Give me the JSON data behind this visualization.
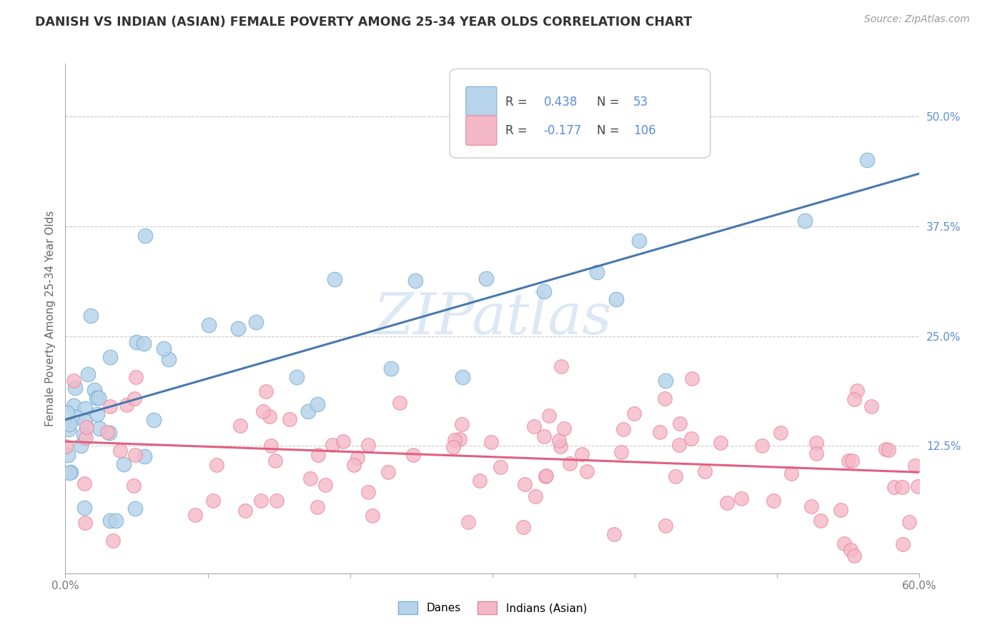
{
  "title": "DANISH VS INDIAN (ASIAN) FEMALE POVERTY AMONG 25-34 YEAR OLDS CORRELATION CHART",
  "source": "Source: ZipAtlas.com",
  "ylabel": "Female Poverty Among 25-34 Year Olds",
  "xlim": [
    0.0,
    0.6
  ],
  "ylim": [
    -0.02,
    0.56
  ],
  "xtick_positions": [
    0.0,
    0.1,
    0.2,
    0.3,
    0.4,
    0.5,
    0.6
  ],
  "xticklabels": [
    "0.0%",
    "",
    "",
    "",
    "",
    "",
    "60.0%"
  ],
  "ytick_positions": [
    0.0,
    0.125,
    0.25,
    0.375,
    0.5
  ],
  "yticklabels": [
    "",
    "12.5%",
    "25.0%",
    "37.5%",
    "50.0%"
  ],
  "danes_N": 53,
  "indians_N": 106,
  "danes_color": "#b8d4ea",
  "danes_edge": "#7aafd4",
  "danes_line_color": "#4878b0",
  "indians_color": "#f5b8c8",
  "indians_edge": "#e8849a",
  "indians_line_color": "#e06080",
  "legend_color": "#5b8dd9",
  "watermark_color": "#dde8f5",
  "background_color": "#ffffff",
  "grid_color": "#cccccc",
  "danes_line_y0": 0.155,
  "danes_line_y1": 0.435,
  "indians_line_y0": 0.13,
  "indians_line_y1": 0.095
}
